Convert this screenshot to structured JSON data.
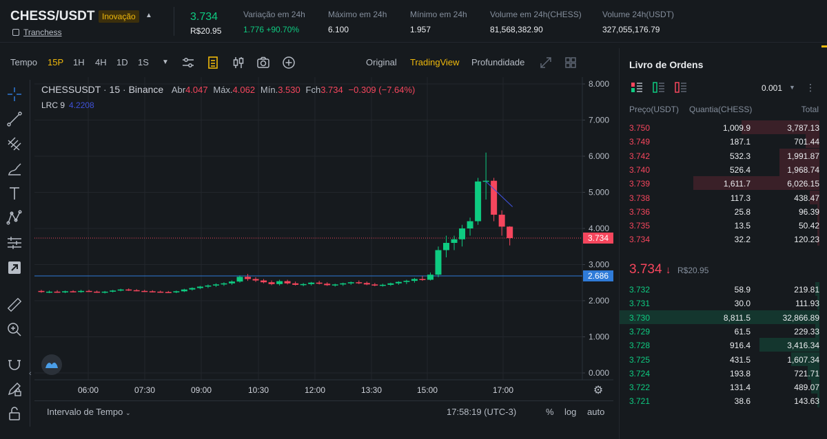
{
  "header": {
    "pair": "CHESS/USDT",
    "badge": "Inovação",
    "project": "Tranchess",
    "last_price": "3.734",
    "last_price_fiat": "R$20.95",
    "stats": [
      {
        "label": "Variação em 24h",
        "value": "1.776 +90.70%",
        "up": true
      },
      {
        "label": "Máximo em 24h",
        "value": "6.100",
        "up": false
      },
      {
        "label": "Mínimo em 24h",
        "value": "1.957",
        "up": false
      },
      {
        "label": "Volume em 24h(CHESS)",
        "value": "81,568,382.90",
        "up": false
      },
      {
        "label": "Volume 24h(USDT)",
        "value": "327,055,176.79",
        "up": false
      }
    ]
  },
  "toolbar": {
    "time_label": "Tempo",
    "intervals": [
      "15P",
      "1H",
      "4H",
      "1D",
      "1S"
    ],
    "active_interval": "15P",
    "views": [
      "Original",
      "TradingView",
      "Profundidade"
    ],
    "active_view": "TradingView",
    "icons": [
      "indicators-icon",
      "template-icon",
      "chart-type-icon",
      "camera-icon",
      "add-icon",
      "expand-icon",
      "grid-icon"
    ]
  },
  "tools": [
    "crosshair-icon",
    "trendline-icon",
    "fib-icon",
    "brush-icon",
    "text-icon",
    "pattern-icon",
    "measure-icon",
    "arrow-icon",
    "ruler-icon",
    "zoom-icon",
    "magnet-icon",
    "lock-pencil-icon",
    "lock-icon"
  ],
  "chart": {
    "symbol": "CHESSUSDT",
    "interval": "15",
    "exchange": "Binance",
    "open_label": "Abr",
    "open": "4.047",
    "high_label": "Máx.",
    "high": "4.062",
    "low_label": "Mín.",
    "low": "3.530",
    "close_label": "Fch",
    "close": "3.734",
    "change": "−0.309 (−7.64%)",
    "indicator_name": "LRC 9",
    "indicator_value": "4.2208",
    "last_price_tag": "3.734",
    "line_tag": "2.686",
    "colors": {
      "up": "#0ecb81",
      "down": "#f6465d",
      "line": "#2f7bd8"
    }
  },
  "chart_data": {
    "type": "candlestick",
    "title": "",
    "y_ticks": [
      "8.000",
      "7.000",
      "6.000",
      "5.000",
      "4.000",
      "3.000",
      "2.000",
      "1.000",
      "0.000"
    ],
    "ylim": [
      0,
      8
    ],
    "x_ticks": [
      "06:00",
      "07:30",
      "09:00",
      "10:30",
      "12:00",
      "13:30",
      "15:00",
      "17:00"
    ],
    "grid": true,
    "horizontal_line": 2.686,
    "last_price": 3.734,
    "candles": [
      {
        "o": 2.27,
        "h": 2.3,
        "l": 2.22,
        "c": 2.24
      },
      {
        "o": 2.24,
        "h": 2.28,
        "l": 2.21,
        "c": 2.25
      },
      {
        "o": 2.25,
        "h": 2.29,
        "l": 2.22,
        "c": 2.23
      },
      {
        "o": 2.23,
        "h": 2.28,
        "l": 2.21,
        "c": 2.26
      },
      {
        "o": 2.26,
        "h": 2.29,
        "l": 2.23,
        "c": 2.24
      },
      {
        "o": 2.24,
        "h": 2.3,
        "l": 2.22,
        "c": 2.27
      },
      {
        "o": 2.27,
        "h": 2.3,
        "l": 2.24,
        "c": 2.25
      },
      {
        "o": 2.25,
        "h": 2.28,
        "l": 2.22,
        "c": 2.23
      },
      {
        "o": 2.23,
        "h": 2.27,
        "l": 2.2,
        "c": 2.25
      },
      {
        "o": 2.25,
        "h": 2.3,
        "l": 2.23,
        "c": 2.28
      },
      {
        "o": 2.28,
        "h": 2.33,
        "l": 2.26,
        "c": 2.31
      },
      {
        "o": 2.31,
        "h": 2.34,
        "l": 2.27,
        "c": 2.29
      },
      {
        "o": 2.29,
        "h": 2.32,
        "l": 2.26,
        "c": 2.27
      },
      {
        "o": 2.27,
        "h": 2.3,
        "l": 2.24,
        "c": 2.26
      },
      {
        "o": 2.26,
        "h": 2.29,
        "l": 2.23,
        "c": 2.25
      },
      {
        "o": 2.25,
        "h": 2.28,
        "l": 2.22,
        "c": 2.24
      },
      {
        "o": 2.24,
        "h": 2.27,
        "l": 2.22,
        "c": 2.23
      },
      {
        "o": 2.23,
        "h": 2.28,
        "l": 2.21,
        "c": 2.26
      },
      {
        "o": 2.26,
        "h": 2.33,
        "l": 2.24,
        "c": 2.31
      },
      {
        "o": 2.31,
        "h": 2.37,
        "l": 2.28,
        "c": 2.35
      },
      {
        "o": 2.35,
        "h": 2.41,
        "l": 2.32,
        "c": 2.39
      },
      {
        "o": 2.39,
        "h": 2.45,
        "l": 2.35,
        "c": 2.42
      },
      {
        "o": 2.42,
        "h": 2.48,
        "l": 2.38,
        "c": 2.45
      },
      {
        "o": 2.45,
        "h": 2.51,
        "l": 2.41,
        "c": 2.48
      },
      {
        "o": 2.48,
        "h": 2.56,
        "l": 2.44,
        "c": 2.53
      },
      {
        "o": 2.53,
        "h": 2.7,
        "l": 2.5,
        "c": 2.66
      },
      {
        "o": 2.66,
        "h": 2.74,
        "l": 2.55,
        "c": 2.6
      },
      {
        "o": 2.6,
        "h": 2.65,
        "l": 2.52,
        "c": 2.56
      },
      {
        "o": 2.56,
        "h": 2.6,
        "l": 2.48,
        "c": 2.51
      },
      {
        "o": 2.51,
        "h": 2.56,
        "l": 2.43,
        "c": 2.46
      },
      {
        "o": 2.46,
        "h": 2.58,
        "l": 2.42,
        "c": 2.54
      },
      {
        "o": 2.54,
        "h": 2.58,
        "l": 2.45,
        "c": 2.48
      },
      {
        "o": 2.48,
        "h": 2.53,
        "l": 2.42,
        "c": 2.44
      },
      {
        "o": 2.44,
        "h": 2.49,
        "l": 2.4,
        "c": 2.46
      },
      {
        "o": 2.46,
        "h": 2.52,
        "l": 2.42,
        "c": 2.5
      },
      {
        "o": 2.5,
        "h": 2.55,
        "l": 2.45,
        "c": 2.47
      },
      {
        "o": 2.47,
        "h": 2.51,
        "l": 2.41,
        "c": 2.43
      },
      {
        "o": 2.43,
        "h": 2.47,
        "l": 2.39,
        "c": 2.45
      },
      {
        "o": 2.45,
        "h": 2.5,
        "l": 2.41,
        "c": 2.48
      },
      {
        "o": 2.48,
        "h": 2.53,
        "l": 2.44,
        "c": 2.51
      },
      {
        "o": 2.51,
        "h": 2.56,
        "l": 2.46,
        "c": 2.49
      },
      {
        "o": 2.49,
        "h": 2.53,
        "l": 2.43,
        "c": 2.45
      },
      {
        "o": 2.45,
        "h": 2.49,
        "l": 2.4,
        "c": 2.42
      },
      {
        "o": 2.42,
        "h": 2.47,
        "l": 2.39,
        "c": 2.44
      },
      {
        "o": 2.44,
        "h": 2.5,
        "l": 2.41,
        "c": 2.48
      },
      {
        "o": 2.48,
        "h": 2.54,
        "l": 2.44,
        "c": 2.52
      },
      {
        "o": 2.52,
        "h": 2.58,
        "l": 2.46,
        "c": 2.55
      },
      {
        "o": 2.55,
        "h": 2.63,
        "l": 2.5,
        "c": 2.6
      },
      {
        "o": 2.6,
        "h": 2.68,
        "l": 2.55,
        "c": 2.58
      },
      {
        "o": 2.58,
        "h": 2.78,
        "l": 2.56,
        "c": 2.72
      },
      {
        "o": 2.72,
        "h": 3.5,
        "l": 2.65,
        "c": 3.4
      },
      {
        "o": 3.4,
        "h": 3.8,
        "l": 3.2,
        "c": 3.6
      },
      {
        "o": 3.6,
        "h": 3.8,
        "l": 3.4,
        "c": 3.7
      },
      {
        "o": 3.7,
        "h": 4.1,
        "l": 3.5,
        "c": 4.0
      },
      {
        "o": 4.0,
        "h": 4.3,
        "l": 3.8,
        "c": 4.2
      },
      {
        "o": 4.2,
        "h": 5.4,
        "l": 4.1,
        "c": 5.3
      },
      {
        "o": 5.3,
        "h": 6.1,
        "l": 4.8,
        "c": 5.32
      },
      {
        "o": 5.32,
        "h": 5.4,
        "l": 4.2,
        "c": 4.38
      },
      {
        "o": 4.38,
        "h": 4.5,
        "l": 3.8,
        "c": 4.05
      },
      {
        "o": 4.05,
        "h": 4.062,
        "l": 3.53,
        "c": 3.734
      }
    ]
  },
  "bottom": {
    "range_label": "Intervalo de Tempo",
    "clock": "17:58:19 (UTC-3)",
    "percent": "%",
    "log": "log",
    "auto": "auto"
  },
  "orderbook": {
    "title": "Livro de Ordens",
    "tick": "0.001",
    "col_price": "Preço(USDT)",
    "col_qty": "Quantia(CHESS)",
    "col_total": "Total",
    "asks": [
      {
        "p": "3.750",
        "q": "1,009.9",
        "t": "3,787.13",
        "d": 0.39
      },
      {
        "p": "3.749",
        "q": "187.1",
        "t": "701.44",
        "d": 0.07
      },
      {
        "p": "3.742",
        "q": "532.3",
        "t": "1,991.87",
        "d": 0.2
      },
      {
        "p": "3.740",
        "q": "526.4",
        "t": "1,968.74",
        "d": 0.2
      },
      {
        "p": "3.739",
        "q": "1,611.7",
        "t": "6,026.15",
        "d": 0.63
      },
      {
        "p": "3.738",
        "q": "117.3",
        "t": "438.47",
        "d": 0.05
      },
      {
        "p": "3.736",
        "q": "25.8",
        "t": "96.39",
        "d": 0.01
      },
      {
        "p": "3.735",
        "q": "13.5",
        "t": "50.42",
        "d": 0.01
      },
      {
        "p": "3.734",
        "q": "32.2",
        "t": "120.23",
        "d": 0.01
      }
    ],
    "mid_price": "3.734",
    "mid_arrow": "↓",
    "mid_fiat": "R$20.95",
    "bids": [
      {
        "p": "3.732",
        "q": "58.9",
        "t": "219.81",
        "d": 0.02
      },
      {
        "p": "3.731",
        "q": "30.0",
        "t": "111.93",
        "d": 0.01
      },
      {
        "p": "3.730",
        "q": "8,811.5",
        "t": "32,866.89",
        "d": 1.0
      },
      {
        "p": "3.729",
        "q": "61.5",
        "t": "229.33",
        "d": 0.02
      },
      {
        "p": "3.728",
        "q": "916.4",
        "t": "3,416.34",
        "d": 0.3
      },
      {
        "p": "3.725",
        "q": "431.5",
        "t": "1,607.34",
        "d": 0.14
      },
      {
        "p": "3.724",
        "q": "193.8",
        "t": "721.71",
        "d": 0.06
      },
      {
        "p": "3.722",
        "q": "131.4",
        "t": "489.07",
        "d": 0.04
      },
      {
        "p": "3.721",
        "q": "38.6",
        "t": "143.63",
        "d": 0.01
      }
    ]
  }
}
